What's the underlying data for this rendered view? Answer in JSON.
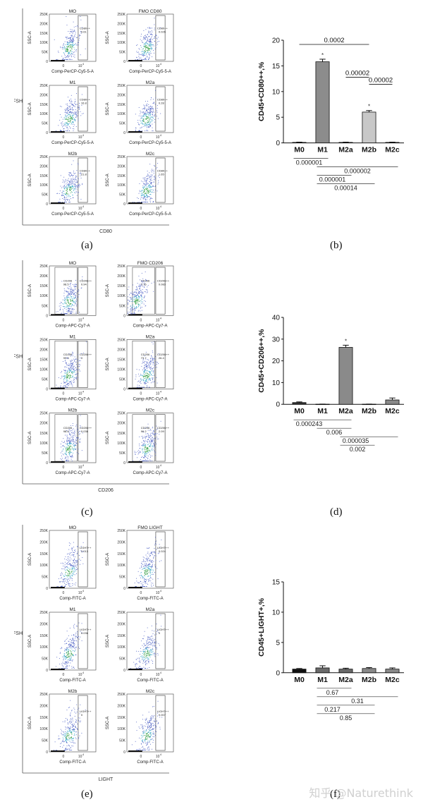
{
  "panel_letters": [
    "(a)",
    "(b)",
    "(c)",
    "(d)",
    "(e)",
    "(f)"
  ],
  "watermark": "知乎 @Naturethink",
  "flow_panels": [
    {
      "letter": "(a)",
      "fsh_label": "FSH",
      "bottom_label": "CD80",
      "x_axis_label": "Comp-PerCP-Cy5-5-A",
      "y_axis_label": "SSC-A",
      "y_ticks": [
        "250K",
        "200K",
        "150K",
        "100K",
        "50K",
        "0"
      ],
      "x_ticks": [
        "0",
        "10",
        "4"
      ],
      "plots": [
        {
          "title": "MO",
          "gate_label": "CD80++",
          "gate_value": "0.61"
        },
        {
          "title": "FMO CD80",
          "gate_label": "CD80++",
          "gate_value": "0.026"
        },
        {
          "title": "M1",
          "gate_label": "CD80++",
          "gate_value": "16.8"
        },
        {
          "title": "M2a",
          "gate_label": "CD80++",
          "gate_value": "0.28"
        },
        {
          "title": "M2b",
          "gate_label": "CD80++",
          "gate_value": "21.8"
        },
        {
          "title": "M2c",
          "gate_label": "CD80++",
          "gate_value": "1.65"
        }
      ]
    },
    {
      "letter": "(c)",
      "fsh_label": "FSH",
      "bottom_label": "CD206",
      "x_axis_label": "Comp-APC-Cy7-A",
      "y_axis_label": "SSC-A",
      "y_ticks": [
        "250K",
        "200K",
        "150K",
        "100K",
        "50K",
        "0"
      ],
      "x_ticks": [
        "0",
        "10",
        "4"
      ],
      "plots": [
        {
          "title": "MO",
          "gate_label": "CD206++",
          "gate_value": "0.94",
          "left_label": "CD206",
          "left_value": "98.5"
        },
        {
          "title": "FMO CD206",
          "gate_label": "CD206++",
          "gate_value": "0.083",
          "left_label": "CD206",
          "left_value": "0.76"
        },
        {
          "title": "M1",
          "gate_label": "CD206++",
          "gate_value": "0",
          "left_label": "CD206",
          "left_value": "99.8"
        },
        {
          "title": "M2a",
          "gate_label": "CD206++",
          "gate_value": "26.4",
          "left_label": "CD206",
          "left_value": "73.7"
        },
        {
          "title": "M2b",
          "gate_label": "CD206++",
          "gate_value": "0.036",
          "left_label": "CD206",
          "left_value": "98.8"
        },
        {
          "title": "M2c",
          "gate_label": "CD206++",
          "gate_value": "2.09",
          "left_label": "CD206",
          "left_value": "96.2"
        }
      ]
    },
    {
      "letter": "(e)",
      "fsh_label": "FSH",
      "bottom_label": "LIGHT",
      "x_axis_label": "Comp-FITC-A",
      "y_axis_label": "SSC-A",
      "y_ticks": [
        "250K",
        "200K",
        "150K",
        "100K",
        "50K",
        "0"
      ],
      "x_ticks": [
        "0",
        "10",
        "4"
      ],
      "plots": [
        {
          "title": "MO",
          "gate_label": "LIGHT++",
          "gate_value": "0.013"
        },
        {
          "title": "FMO LIGHT",
          "gate_label": "LIGHT++",
          "gate_value": "0.024"
        },
        {
          "title": "M1",
          "gate_label": "LIGHT++",
          "gate_value": "0.036"
        },
        {
          "title": "M2a",
          "gate_label": "LIGHT++",
          "gate_value": "0"
        },
        {
          "title": "M2b",
          "gate_label": "LIGHT++",
          "gate_value": "0"
        },
        {
          "title": "M2c",
          "gate_label": "LIGHT++",
          "gate_value": "0.007"
        }
      ]
    }
  ],
  "chart_data": [
    {
      "type": "bar",
      "letter": "(b)",
      "ylabel": "CD45+CD80++,%",
      "categories": [
        "M0",
        "M1",
        "M2a",
        "M2b",
        "M2c"
      ],
      "values": [
        0.1,
        15.8,
        0.1,
        6.0,
        0.1
      ],
      "errors": [
        0.05,
        0.5,
        0.05,
        0.3,
        0.05
      ],
      "bar_colors": [
        "#888888",
        "#8c8c8c",
        "#9a9a9a",
        "#c8c8c8",
        "#b0b0b0"
      ],
      "star_labels": [
        "",
        "*",
        "",
        "*",
        ""
      ],
      "ylim": [
        0,
        20
      ],
      "yticks": [
        0,
        5,
        10,
        15,
        20
      ],
      "top_brackets": [
        {
          "from": 0,
          "to": 3,
          "label": "0.0002"
        },
        {
          "from": 2,
          "to": 3,
          "label": "0.00002"
        },
        {
          "from": 3,
          "to": 4,
          "label": "0.00002"
        }
      ],
      "bottom_brackets": [
        {
          "from": 0,
          "to": 1,
          "label": "0.000001"
        },
        {
          "from": 1,
          "to": 4,
          "label": "0.000002"
        },
        {
          "from": 1,
          "to": 2,
          "label": "0.000001"
        },
        {
          "from": 1,
          "to": 3,
          "label": "0.00014"
        }
      ]
    },
    {
      "type": "bar",
      "letter": "(d)",
      "ylabel": "CD45+CD206++,%",
      "categories": [
        "M0",
        "M1",
        "M2a",
        "M2b",
        "M2c"
      ],
      "values": [
        0.8,
        0.05,
        26.2,
        0.05,
        2.0
      ],
      "errors": [
        0.3,
        0.05,
        1.0,
        0.05,
        0.9
      ],
      "bar_colors": [
        "#333333",
        "#555555",
        "#8a8a8a",
        "#aaaaaa",
        "#8a8a8a"
      ],
      "star_labels": [
        "",
        "",
        "*",
        "",
        ""
      ],
      "ylim": [
        0,
        40
      ],
      "yticks": [
        0,
        10,
        20,
        30,
        40
      ],
      "top_brackets": [],
      "bottom_brackets": [
        {
          "from": 0,
          "to": 2,
          "label": "0.000243"
        },
        {
          "from": 1,
          "to": 2,
          "label": "0.006"
        },
        {
          "from": 2,
          "to": 4,
          "label": "0.000035"
        },
        {
          "from": 2,
          "to": 3,
          "label": "0.002"
        }
      ]
    },
    {
      "type": "bar",
      "letter": "(f)",
      "ylabel": "CD45+LIGHT+,%",
      "categories": [
        "M0",
        "M1",
        "M2a",
        "M2b",
        "M2c"
      ],
      "values": [
        0.6,
        0.8,
        0.6,
        0.7,
        0.6
      ],
      "errors": [
        0.1,
        0.35,
        0.15,
        0.15,
        0.2
      ],
      "bar_colors": [
        "#111111",
        "#6a6a6a",
        "#6a6a6a",
        "#8a8a8a",
        "#8a8a8a"
      ],
      "star_labels": [
        "",
        "",
        "",
        "",
        ""
      ],
      "ylim": [
        0,
        15
      ],
      "yticks": [
        0,
        5,
        10,
        15
      ],
      "top_brackets": [],
      "bottom_brackets": [
        {
          "from": 1,
          "to": 2,
          "label": "0.67"
        },
        {
          "from": 1,
          "to": 4,
          "label": "0.31"
        },
        {
          "from": 1,
          "to": 3,
          "label": "0.217"
        },
        {
          "from": 1,
          "to": 3,
          "label": "0.85"
        }
      ]
    }
  ]
}
